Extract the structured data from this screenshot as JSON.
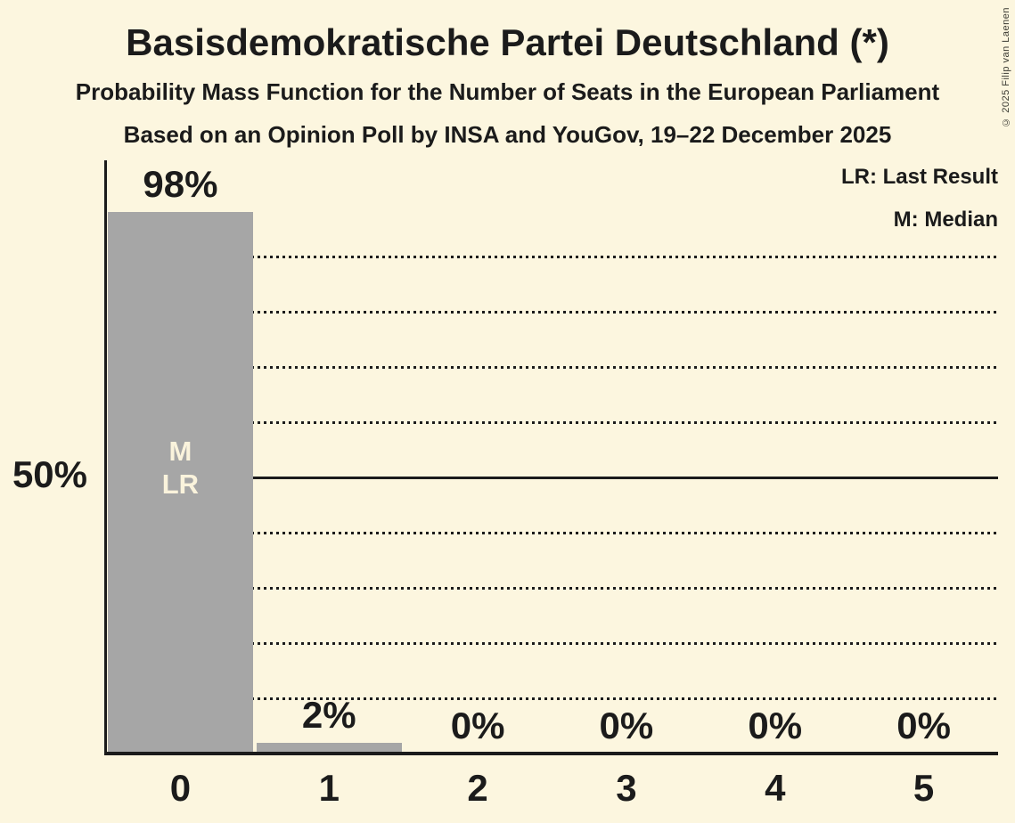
{
  "title": "Basisdemokratische Partei Deutschland (*)",
  "subtitle1": "Probability Mass Function for the Number of Seats in the European Parliament",
  "subtitle2": "Based on an Opinion Poll by INSA and YouGov, 19–22 December 2025",
  "copyright": "© 2025 Filip van Laenen",
  "legend": {
    "lr": "LR: Last Result",
    "m": "M: Median"
  },
  "y_axis": {
    "tick_label": "50%"
  },
  "chart_data": {
    "type": "bar",
    "title": "Basisdemokratische Partei Deutschland (*)",
    "subtitle": "Probability Mass Function for the Number of Seats in the European Parliament",
    "source_note": "Based on an Opinion Poll by INSA and YouGov, 19–22 December 2025",
    "categories": [
      "0",
      "1",
      "2",
      "3",
      "4",
      "5"
    ],
    "values": [
      98,
      2,
      0,
      0,
      0,
      0
    ],
    "bar_labels": [
      "98%",
      "2%",
      "0%",
      "0%",
      "0%",
      "0%"
    ],
    "xlabel": "",
    "ylabel": "",
    "ylim": [
      0,
      100
    ],
    "ytick_labeled": [
      {
        "pct": 50,
        "label": "50%"
      }
    ],
    "gridlines_pct": [
      10,
      20,
      30,
      40,
      60,
      70,
      80,
      90
    ],
    "solid_gridline_pct": 50,
    "grid": "dotted-horizontal",
    "legend_position": "top-right",
    "legend_entries": [
      "LR: Last Result",
      "M: Median"
    ],
    "annotations": {
      "median_category": "0",
      "last_result_category": "0",
      "bar0_inner_labels": [
        "M",
        "LR"
      ]
    },
    "colors": {
      "background": "#FCF6DF",
      "bar": "#A6A6A6",
      "text": "#1B1B1B",
      "bar_inner_text": "#FAF3DC"
    }
  }
}
